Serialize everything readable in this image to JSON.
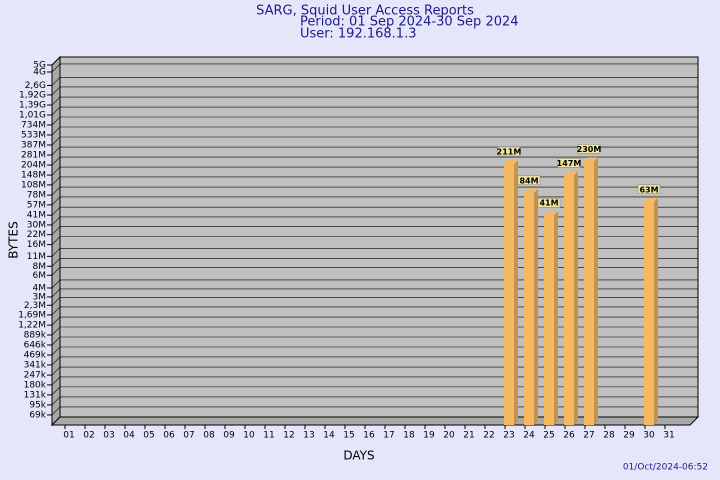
{
  "chart_data": {
    "type": "bar",
    "log_scale": true,
    "grid": true,
    "color": "#f5b961",
    "title": "SARG, Squid User Access Reports",
    "subtitle": [
      "Period: 01 Sep 2024-30 Sep 2024",
      "User: 192.168.1.3"
    ],
    "ylabel": "BYTES",
    "xlabel": "DAYS",
    "footer": "01/Oct/2024-06:52",
    "categories": [
      "01",
      "02",
      "03",
      "04",
      "05",
      "06",
      "07",
      "08",
      "09",
      "10",
      "11",
      "12",
      "13",
      "14",
      "15",
      "16",
      "17",
      "18",
      "19",
      "20",
      "21",
      "22",
      "23",
      "24",
      "25",
      "26",
      "27",
      "28",
      "29",
      "30",
      "31"
    ],
    "values": [
      null,
      null,
      null,
      null,
      null,
      null,
      null,
      null,
      null,
      null,
      null,
      null,
      null,
      null,
      null,
      null,
      null,
      null,
      null,
      null,
      null,
      null,
      211000000,
      84000000,
      41000000,
      147000000,
      230000000,
      null,
      null,
      63000000,
      null
    ],
    "value_labels": [
      null,
      null,
      null,
      null,
      null,
      null,
      null,
      null,
      null,
      null,
      null,
      null,
      null,
      null,
      null,
      null,
      null,
      null,
      null,
      null,
      null,
      null,
      "211M",
      "84M",
      "41M",
      "147M",
      "230M",
      null,
      null,
      "63M",
      null
    ],
    "ylim": [
      50000,
      5000000000
    ],
    "yticks": [
      {
        "value": 5000000000,
        "label": "5G"
      },
      {
        "value": 4000000000,
        "label": "4G"
      },
      {
        "value": 2600000000,
        "label": "2,6G"
      },
      {
        "value": 1920000000,
        "label": "1,92G"
      },
      {
        "value": 1390000000,
        "label": "1,39G"
      },
      {
        "value": 1010000000,
        "label": "1,01G"
      },
      {
        "value": 734000000,
        "label": "734M"
      },
      {
        "value": 533000000,
        "label": "533M"
      },
      {
        "value": 387000000,
        "label": "387M"
      },
      {
        "value": 281000000,
        "label": "281M"
      },
      {
        "value": 204000000,
        "label": "204M"
      },
      {
        "value": 148000000,
        "label": "148M"
      },
      {
        "value": 108000000,
        "label": "108M"
      },
      {
        "value": 78000000,
        "label": "78M"
      },
      {
        "value": 57000000,
        "label": "57M"
      },
      {
        "value": 41000000,
        "label": "41M"
      },
      {
        "value": 30000000,
        "label": "30M"
      },
      {
        "value": 22000000,
        "label": "22M"
      },
      {
        "value": 16000000,
        "label": "16M"
      },
      {
        "value": 11000000,
        "label": "11M"
      },
      {
        "value": 8000000,
        "label": "8M"
      },
      {
        "value": 6000000,
        "label": "6M"
      },
      {
        "value": 4000000,
        "label": "4M"
      },
      {
        "value": 3000000,
        "label": "3M"
      },
      {
        "value": 2300000,
        "label": "2,3M"
      },
      {
        "value": 1690000,
        "label": "1,69M"
      },
      {
        "value": 1220000,
        "label": "1,22M"
      },
      {
        "value": 889000,
        "label": "889k"
      },
      {
        "value": 646000,
        "label": "646k"
      },
      {
        "value": 469000,
        "label": "469k"
      },
      {
        "value": 341000,
        "label": "341k"
      },
      {
        "value": 247000,
        "label": "247k"
      },
      {
        "value": 180000,
        "label": "180k"
      },
      {
        "value": 131000,
        "label": "131k"
      },
      {
        "value": 95000,
        "label": "95k"
      },
      {
        "value": 69000,
        "label": "69k"
      }
    ]
  }
}
